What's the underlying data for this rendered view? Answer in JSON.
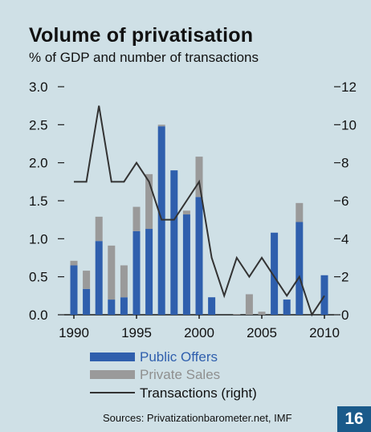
{
  "chart_data": {
    "type": "bar",
    "title": "Volume of privatisation",
    "subtitle": "% of GDP and number of transactions",
    "x": [
      1990,
      1991,
      1992,
      1993,
      1994,
      1995,
      1996,
      1997,
      1998,
      1999,
      2000,
      2001,
      2002,
      2003,
      2004,
      2005,
      2006,
      2007,
      2008,
      2009,
      2010
    ],
    "xticks": [
      "1990",
      "1995",
      "2000",
      "2005",
      "2010"
    ],
    "yticks_left": [
      "0.0",
      "0.5",
      "1.0",
      "1.5",
      "2.0",
      "2.5",
      "3.0"
    ],
    "yticks_right": [
      "0",
      "2",
      "4",
      "6",
      "8",
      "10",
      "12"
    ],
    "ylim_left": [
      0,
      3
    ],
    "ylim_right": [
      0,
      12
    ],
    "stacked": true,
    "series": [
      {
        "name": "Public Offers",
        "axis": "left",
        "kind": "bar",
        "color": "#2f5fad",
        "values": [
          0.65,
          0.34,
          0.97,
          0.2,
          0.23,
          1.1,
          1.13,
          2.48,
          1.9,
          1.32,
          1.55,
          0.23,
          0.0,
          0.0,
          0.0,
          0.0,
          1.08,
          0.2,
          1.22,
          0.0,
          0.52
        ]
      },
      {
        "name": "Private Sales",
        "axis": "left",
        "kind": "bar",
        "color": "#9a9a9a",
        "values": [
          0.06,
          0.24,
          0.32,
          0.71,
          0.42,
          0.32,
          0.72,
          0.02,
          0.0,
          0.05,
          0.53,
          0.0,
          0.0,
          0.01,
          0.27,
          0.04,
          0.0,
          0.0,
          0.25,
          0.0,
          0.0
        ]
      },
      {
        "name": "Transactions (right)",
        "axis": "right",
        "kind": "line",
        "color": "#333333",
        "values": [
          7,
          7,
          11,
          7,
          7,
          8,
          7,
          5,
          5,
          6,
          7,
          3,
          1,
          3,
          2,
          3,
          2,
          1,
          2,
          0,
          1
        ]
      }
    ],
    "legend_position": "bottom-left",
    "grid": false
  },
  "footer": {
    "sources": "Sources: Privatizationbarometer.net, IMF",
    "page_number": "16"
  }
}
